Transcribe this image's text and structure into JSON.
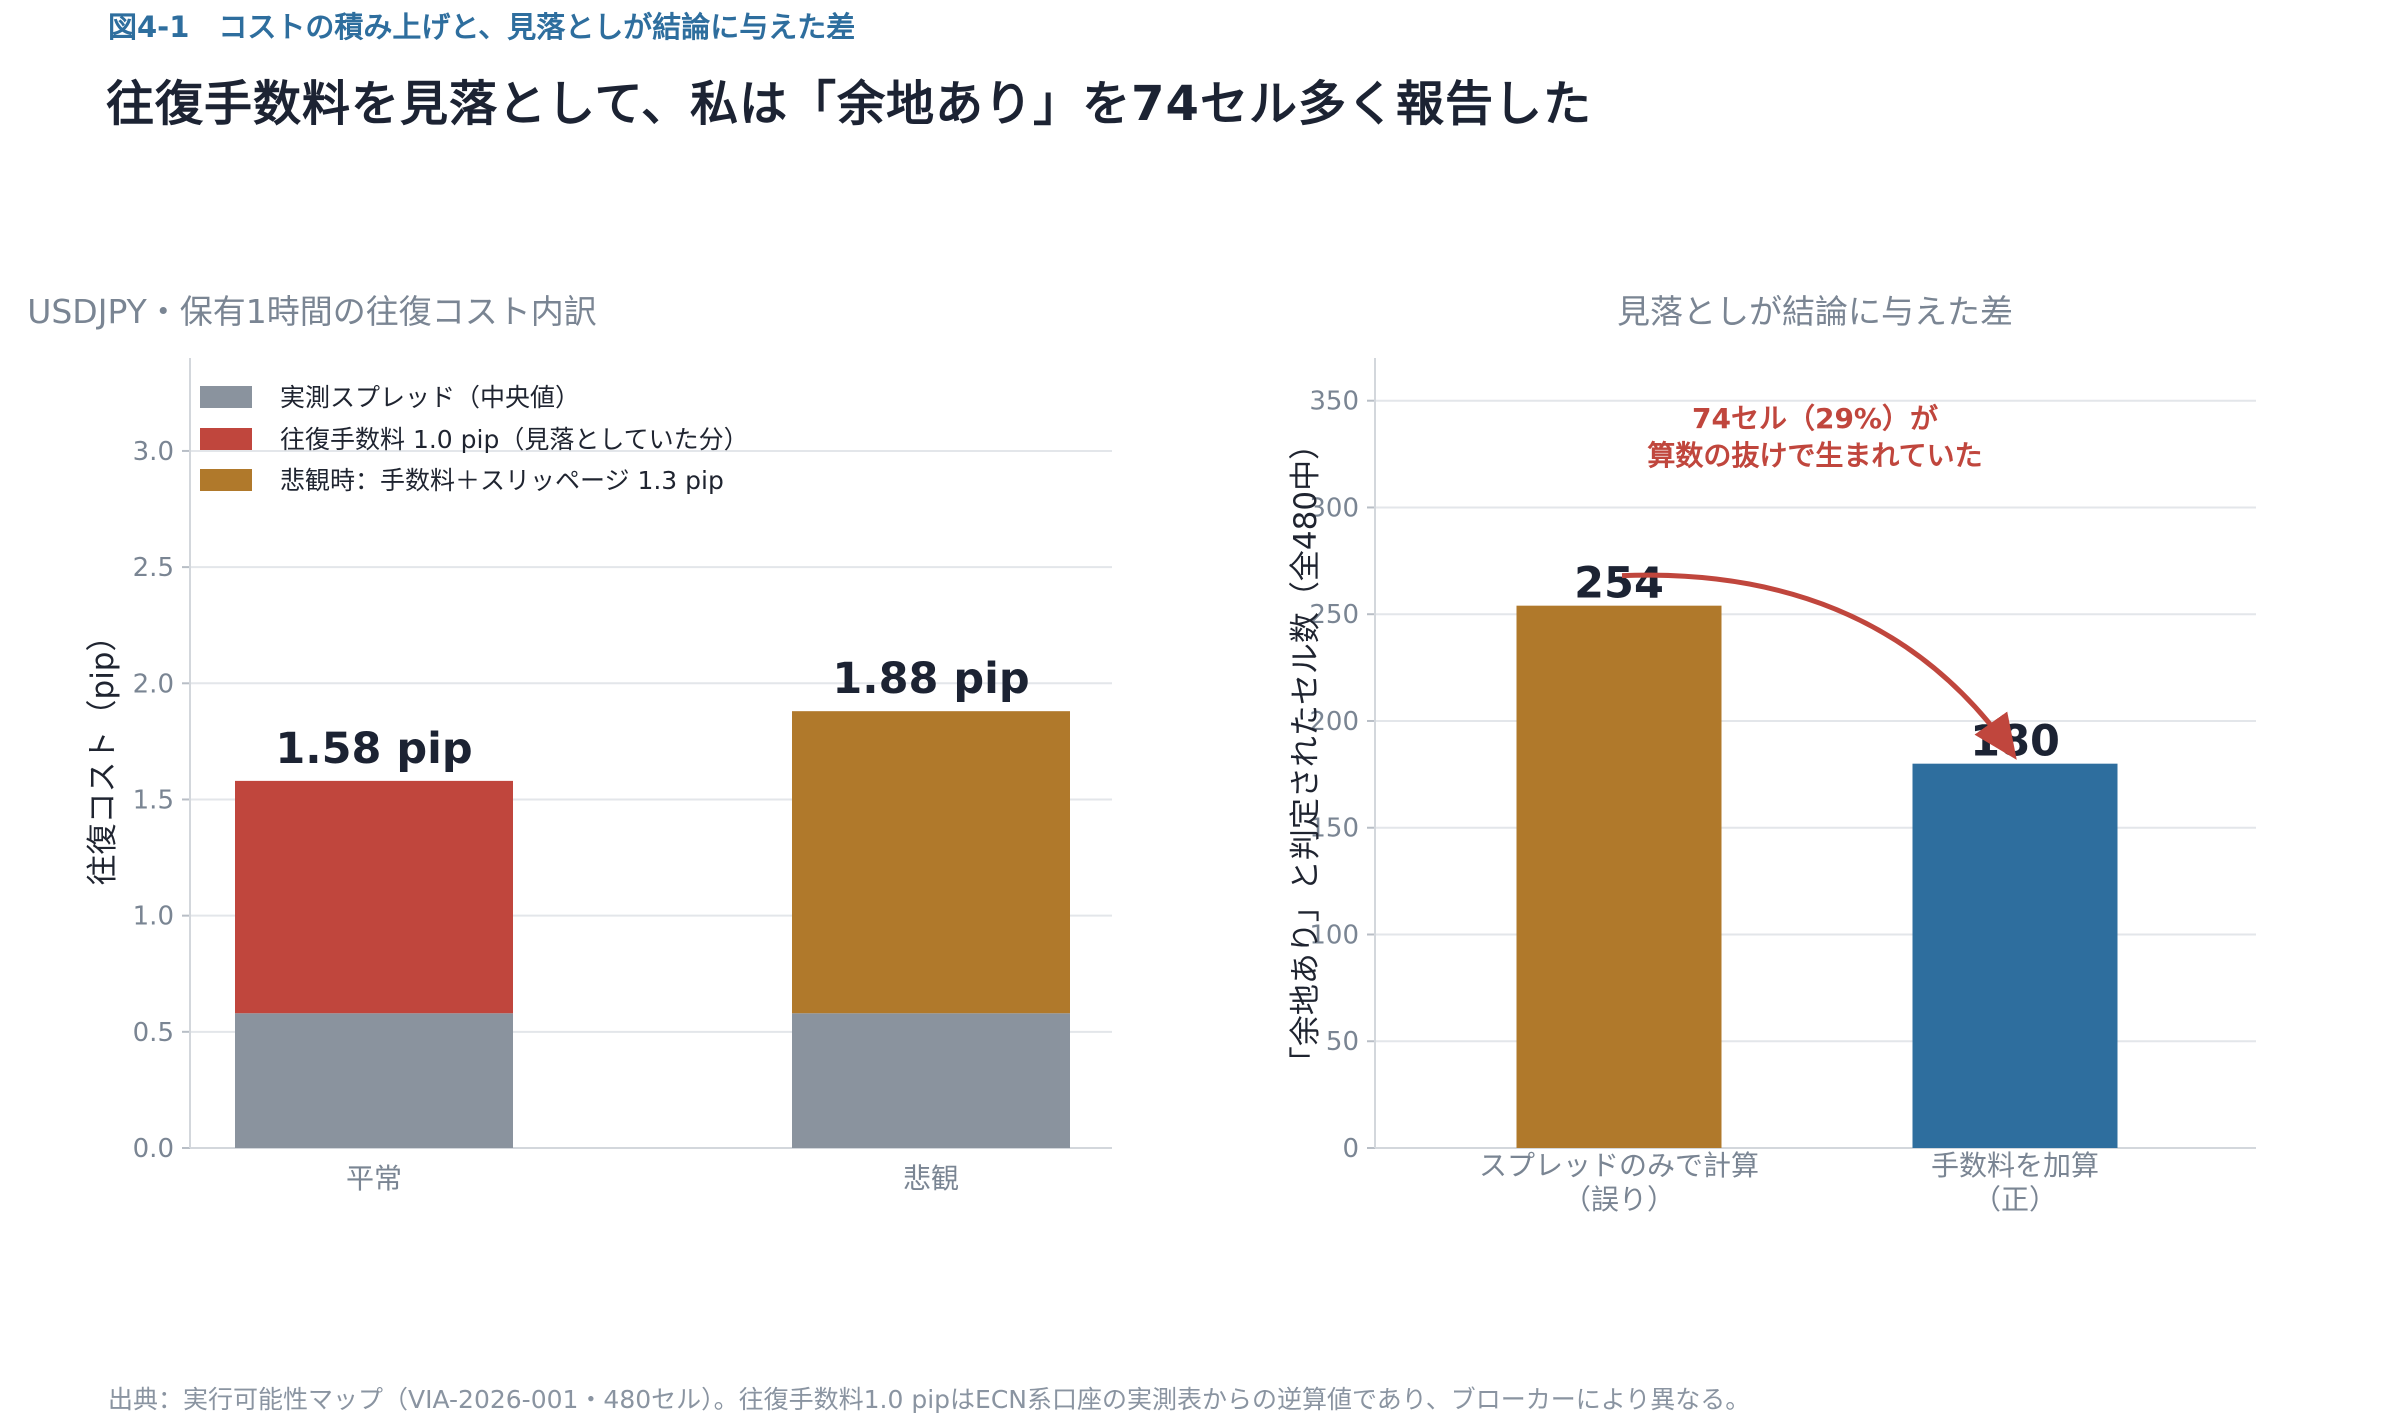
{
  "header": {
    "kicker": "図4-1　コストの積み上げと、見落としが結論に与えた差",
    "title": "往復手数料を見落として、私は「余地あり」を74セル多く報告した"
  },
  "footer": {
    "source": "出典：実行可能性マップ（VIA-2026-001・480セル）。往復手数料1.0 pipはECN系口座の実測表からの逆算値であり、ブローカーにより異なる。"
  },
  "chart_data": [
    {
      "type": "bar",
      "stacked": true,
      "title": "USDJPY・保有1時間の往復コスト内訳",
      "xlabel": "",
      "ylabel": "往復コスト（pip）",
      "categories": [
        "平常",
        "悲観"
      ],
      "series": [
        {
          "name": "実測スプレッド（中央値）",
          "values": [
            0.58,
            0.58
          ],
          "color": "#8a939e"
        },
        {
          "name": "往復手数料 1.0 pip（見落としていた分）",
          "values": [
            1.0,
            0
          ],
          "color": "#c0463d"
        },
        {
          "name": "悲観時：手数料＋スリッページ 1.3 pip",
          "values": [
            0,
            1.3
          ],
          "color": "#b0792b"
        }
      ],
      "totals": [
        "1.58 pip",
        "1.88 pip"
      ],
      "ylim": [
        0,
        3.4
      ],
      "yticks": [
        "0.0",
        "0.5",
        "1.0",
        "1.5",
        "2.0",
        "2.5",
        "3.0"
      ],
      "grid": true,
      "legend": "top-left"
    },
    {
      "type": "bar",
      "title": "見落としが結論に与えた差",
      "xlabel": "",
      "ylabel": "「余地あり」と判定されたセル数（全480中）",
      "categories": [
        "スプレッドのみで計算\n（誤り）",
        "手数料を加算\n（正）"
      ],
      "values": [
        254,
        180
      ],
      "colors": [
        "#b0792b",
        "#2e6e9e"
      ],
      "value_labels": [
        "254",
        "180"
      ],
      "ylim": [
        0,
        370
      ],
      "yticks": [
        "0",
        "50",
        "100",
        "150",
        "200",
        "250",
        "300",
        "350"
      ],
      "grid": true,
      "annotation": [
        "74セル（29%）が",
        "算数の抜けで生まれていた"
      ],
      "annotation_color": "#c0463d"
    }
  ]
}
